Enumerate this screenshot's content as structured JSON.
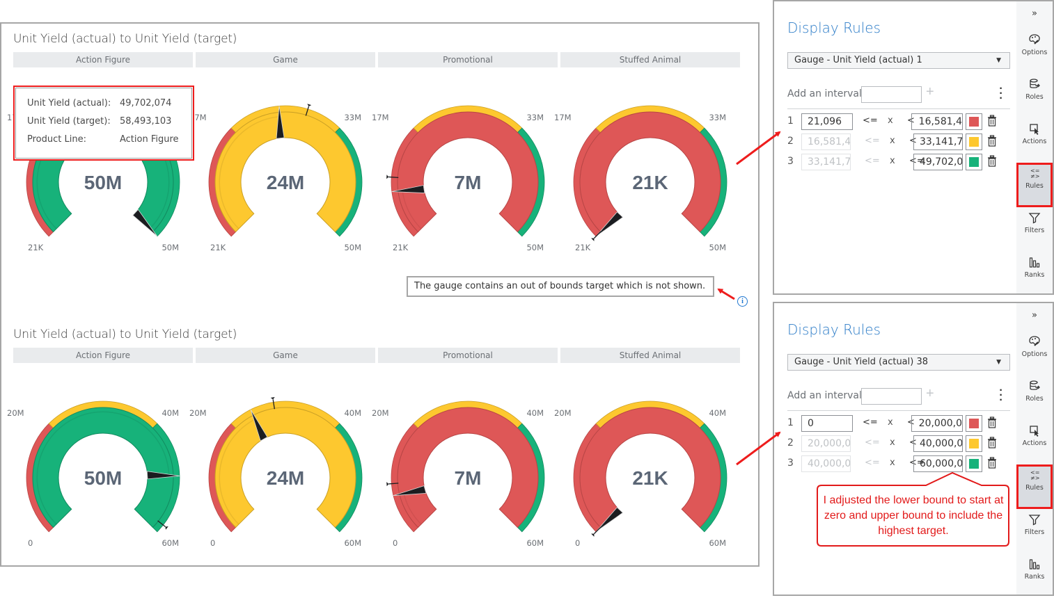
{
  "colors": {
    "red": "#de5757",
    "yellow": "#fdc82f",
    "green": "#17b27a",
    "red_dark": "#b74545",
    "yellow_dark": "#c99f25",
    "green_dark": "#128a5f",
    "value_text": "#5b6676",
    "tick_text": "#6b6f74",
    "accent_blue": "#2b7bc7",
    "annotation_red": "#ee1c1c"
  },
  "top_viz": {
    "title": "Unit Yield (actual) to Unit Yield (target)",
    "categories": [
      "Action Figure",
      "Game",
      "Promotional",
      "Stuffed Animal"
    ],
    "range": {
      "min": 21096,
      "max": 49702074,
      "thresholds": [
        16581400,
        33141700
      ]
    },
    "tick_labels": {
      "min": "21K",
      "t1": "17M",
      "t2": "33M",
      "max": "50M"
    },
    "gauges": [
      {
        "category": "Action Figure",
        "value_label": "50M",
        "value": 49702074,
        "target": 58493103,
        "target_shown": false
      },
      {
        "category": "Game",
        "value_label": "24M",
        "value": 24000000,
        "target": 28000000,
        "target_shown": true
      },
      {
        "category": "Promotional",
        "value_label": "7M",
        "value": 7000000,
        "target": 9000000,
        "target_shown": true
      },
      {
        "category": "Stuffed Animal",
        "value_label": "21K",
        "value": 21096,
        "target": 0,
        "target_shown": true
      }
    ],
    "tooltip": {
      "rows": [
        {
          "key": "Unit Yield (actual):",
          "value": "49,702,074"
        },
        {
          "key": "Unit Yield (target):",
          "value": "58,493,103"
        },
        {
          "key": "Product Line:",
          "value": "Action Figure"
        }
      ]
    },
    "out_of_bounds_message": "The gauge contains an out of bounds target which is not shown."
  },
  "bottom_viz": {
    "title": "Unit Yield (actual) to Unit Yield (target)",
    "categories": [
      "Action Figure",
      "Game",
      "Promotional",
      "Stuffed Animal"
    ],
    "range": {
      "min": 0,
      "max": 60000000,
      "thresholds": [
        20000000,
        40000000
      ]
    },
    "tick_labels": {
      "min": "0",
      "t1": "20M",
      "t2": "40M",
      "max": "60M"
    },
    "gauges": [
      {
        "category": "Action Figure",
        "value_label": "50M",
        "value": 49702074,
        "target": 58493103,
        "target_shown": true
      },
      {
        "category": "Game",
        "value_label": "24M",
        "value": 24000000,
        "target": 28000000,
        "target_shown": true
      },
      {
        "category": "Promotional",
        "value_label": "7M",
        "value": 7000000,
        "target": 9000000,
        "target_shown": true
      },
      {
        "category": "Stuffed Animal",
        "value_label": "21K",
        "value": 21096,
        "target": 0,
        "target_shown": true
      }
    ]
  },
  "display_rules_top": {
    "title": "Display Rules",
    "selector_value": "Gauge - Unit Yield (actual) 1",
    "add_interval_label": "Add an interval",
    "add_interval_value": "",
    "rules": [
      {
        "index": "1",
        "lower": "21,096",
        "op1": "<=",
        "var": "x",
        "op2": "<",
        "upper": "16,581,4",
        "color": "red",
        "lower_editable": true
      },
      {
        "index": "2",
        "lower": "16,581,4",
        "op1": "<=",
        "var": "x",
        "op2": "<",
        "upper": "33,141,7",
        "color": "yellow",
        "lower_editable": false
      },
      {
        "index": "3",
        "lower": "33,141,7",
        "op1": "<=",
        "var": "x",
        "op2": "<=",
        "upper": "49,702,0",
        "color": "green",
        "lower_editable": false
      }
    ]
  },
  "display_rules_bottom": {
    "title": "Display Rules",
    "selector_value": "Gauge - Unit Yield (actual) 38",
    "add_interval_label": "Add an interval",
    "add_interval_value": "",
    "rules": [
      {
        "index": "1",
        "lower": "0",
        "op1": "<=",
        "var": "x",
        "op2": "<",
        "upper": "20,000,0",
        "color": "red",
        "lower_editable": true
      },
      {
        "index": "2",
        "lower": "20,000,0",
        "op1": "<=",
        "var": "x",
        "op2": "<",
        "upper": "40,000,0",
        "color": "yellow",
        "lower_editable": false
      },
      {
        "index": "3",
        "lower": "40,000,0",
        "op1": "<=",
        "var": "x",
        "op2": "<=",
        "upper": "60,000,0",
        "color": "green",
        "lower_editable": false
      }
    ]
  },
  "rail": {
    "collapse_glyph": "»",
    "items": [
      {
        "label": "Options",
        "icon": "palette-icon"
      },
      {
        "label": "Roles",
        "icon": "database-icon"
      },
      {
        "label": "Actions",
        "icon": "cursor-icon"
      },
      {
        "label": "Rules",
        "icon": "rules-icon",
        "active": true
      },
      {
        "label": "Filters",
        "icon": "filter-icon"
      },
      {
        "label": "Ranks",
        "icon": "ranks-icon"
      }
    ]
  },
  "annotation": {
    "callout_text": "I adjusted the lower bound to start at zero and upper bound to include the highest target."
  },
  "chart_data": [
    {
      "type": "gauge",
      "title": "Unit Yield (actual) to Unit Yield (target)",
      "categories": [
        "Action Figure",
        "Game",
        "Promotional",
        "Stuffed Animal"
      ],
      "values": [
        49702074,
        24000000,
        7000000,
        21096
      ],
      "value_labels": [
        "50M",
        "24M",
        "7M",
        "21K"
      ],
      "targets": [
        58493103,
        28000000,
        9000000,
        0
      ],
      "axis_range": [
        21096,
        49702074
      ],
      "axis_tick_labels": [
        "21K",
        "17M",
        "33M",
        "50M"
      ],
      "bands": [
        {
          "from": 21096,
          "to": 16581400,
          "color": "red"
        },
        {
          "from": 16581400,
          "to": 33141700,
          "color": "yellow"
        },
        {
          "from": 33141700,
          "to": 49702074,
          "color": "green"
        }
      ],
      "note": "The gauge contains an out of bounds target which is not shown."
    },
    {
      "type": "gauge",
      "title": "Unit Yield (actual) to Unit Yield (target)",
      "categories": [
        "Action Figure",
        "Game",
        "Promotional",
        "Stuffed Animal"
      ],
      "values": [
        49702074,
        24000000,
        7000000,
        21096
      ],
      "value_labels": [
        "50M",
        "24M",
        "7M",
        "21K"
      ],
      "targets": [
        58493103,
        28000000,
        9000000,
        0
      ],
      "axis_range": [
        0,
        60000000
      ],
      "axis_tick_labels": [
        "0",
        "20M",
        "40M",
        "60M"
      ],
      "bands": [
        {
          "from": 0,
          "to": 20000000,
          "color": "red"
        },
        {
          "from": 20000000,
          "to": 40000000,
          "color": "yellow"
        },
        {
          "from": 40000000,
          "to": 60000000,
          "color": "green"
        }
      ]
    }
  ]
}
